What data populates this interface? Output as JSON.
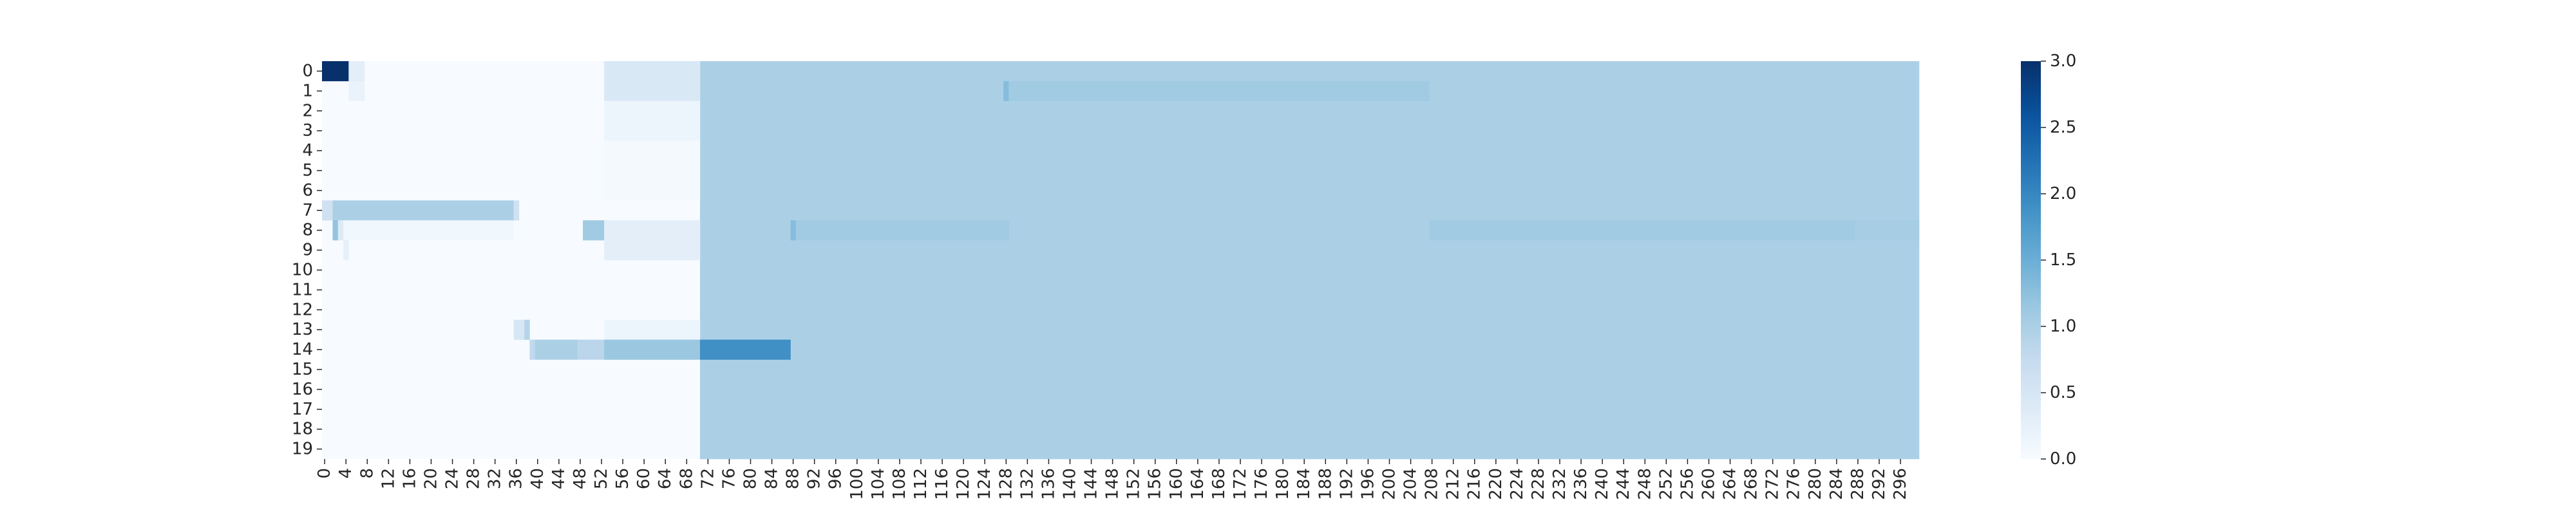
{
  "chart_data": {
    "type": "heatmap",
    "n_rows": 20,
    "n_cols": 300,
    "row_labels": [
      "0",
      "1",
      "2",
      "3",
      "4",
      "5",
      "6",
      "7",
      "8",
      "9",
      "10",
      "11",
      "12",
      "13",
      "14",
      "15",
      "16",
      "17",
      "18",
      "19"
    ],
    "x_tick_step": 4,
    "x_tick_labels": [
      "0",
      "4",
      "8",
      "12",
      "16",
      "20",
      "24",
      "28",
      "32",
      "36",
      "40",
      "44",
      "48",
      "52",
      "56",
      "60",
      "64",
      "68",
      "72",
      "76",
      "80",
      "84",
      "88",
      "92",
      "96",
      "100",
      "104",
      "108",
      "112",
      "116",
      "120",
      "124",
      "128",
      "132",
      "136",
      "140",
      "144",
      "148",
      "152",
      "156",
      "160",
      "164",
      "168",
      "172",
      "176",
      "180",
      "184",
      "188",
      "192",
      "196",
      "200",
      "204",
      "208",
      "212",
      "216",
      "220",
      "224",
      "228",
      "232",
      "236",
      "240",
      "244",
      "248",
      "252",
      "256",
      "260",
      "264",
      "268",
      "272",
      "276",
      "280",
      "284",
      "288",
      "292",
      "296"
    ],
    "value_range": [
      0.0,
      3.0
    ],
    "colormap": "Blues",
    "default_value": 0.0,
    "regions": [
      {
        "rows": [
          0,
          19
        ],
        "cols": [
          71,
          299
        ],
        "value": 1.0
      },
      {
        "rows": [
          0,
          0
        ],
        "cols": [
          0,
          4
        ],
        "value": 3.0
      },
      {
        "rows": [
          0,
          0
        ],
        "cols": [
          5,
          7
        ],
        "value": 0.3
      },
      {
        "rows": [
          0,
          1
        ],
        "cols": [
          53,
          70
        ],
        "value": 0.45
      },
      {
        "rows": [
          1,
          1
        ],
        "cols": [
          5,
          7
        ],
        "value": 0.2
      },
      {
        "rows": [
          1,
          1
        ],
        "cols": [
          128,
          128
        ],
        "value": 1.3
      },
      {
        "rows": [
          1,
          1
        ],
        "cols": [
          129,
          207
        ],
        "value": 1.1
      },
      {
        "rows": [
          2,
          3
        ],
        "cols": [
          53,
          70
        ],
        "value": 0.15
      },
      {
        "rows": [
          4,
          6
        ],
        "cols": [
          53,
          70
        ],
        "value": 0.05
      },
      {
        "rows": [
          7,
          7
        ],
        "cols": [
          0,
          1
        ],
        "value": 0.6
      },
      {
        "rows": [
          7,
          7
        ],
        "cols": [
          2,
          35
        ],
        "value": 1.0
      },
      {
        "rows": [
          7,
          7
        ],
        "cols": [
          36,
          36
        ],
        "value": 0.6
      },
      {
        "rows": [
          8,
          8
        ],
        "cols": [
          2,
          2
        ],
        "value": 1.2
      },
      {
        "rows": [
          8,
          8
        ],
        "cols": [
          3,
          3
        ],
        "value": 0.4
      },
      {
        "rows": [
          8,
          8
        ],
        "cols": [
          4,
          35
        ],
        "value": 0.1
      },
      {
        "rows": [
          8,
          8
        ],
        "cols": [
          49,
          52
        ],
        "value": 1.1
      },
      {
        "rows": [
          8,
          9
        ],
        "cols": [
          53,
          70
        ],
        "value": 0.3
      },
      {
        "rows": [
          8,
          8
        ],
        "cols": [
          88,
          88
        ],
        "value": 1.3
      },
      {
        "rows": [
          8,
          8
        ],
        "cols": [
          89,
          128
        ],
        "value": 1.1
      },
      {
        "rows": [
          8,
          8
        ],
        "cols": [
          208,
          287
        ],
        "value": 1.1
      },
      {
        "rows": [
          8,
          8
        ],
        "cols": [
          288,
          299
        ],
        "value": 1.05
      },
      {
        "rows": [
          9,
          9
        ],
        "cols": [
          4,
          4
        ],
        "value": 0.25
      },
      {
        "rows": [
          13,
          13
        ],
        "cols": [
          36,
          37
        ],
        "value": 0.5
      },
      {
        "rows": [
          13,
          13
        ],
        "cols": [
          38,
          38
        ],
        "value": 0.9
      },
      {
        "rows": [
          13,
          13
        ],
        "cols": [
          53,
          70
        ],
        "value": 0.15
      },
      {
        "rows": [
          14,
          14
        ],
        "cols": [
          39,
          39
        ],
        "value": 0.8
      },
      {
        "rows": [
          14,
          14
        ],
        "cols": [
          40,
          47
        ],
        "value": 1.0
      },
      {
        "rows": [
          14,
          14
        ],
        "cols": [
          48,
          52
        ],
        "value": 0.85
      },
      {
        "rows": [
          14,
          14
        ],
        "cols": [
          53,
          70
        ],
        "value": 1.15
      },
      {
        "rows": [
          14,
          14
        ],
        "cols": [
          71,
          87
        ],
        "value": 1.9
      }
    ],
    "colorbar": {
      "ticks": [
        "0.0",
        "0.5",
        "1.0",
        "1.5",
        "2.0",
        "2.5",
        "3.0"
      ],
      "tick_values": [
        0.0,
        0.5,
        1.0,
        1.5,
        2.0,
        2.5,
        3.0
      ]
    },
    "title": "",
    "xlabel": "",
    "ylabel": ""
  }
}
